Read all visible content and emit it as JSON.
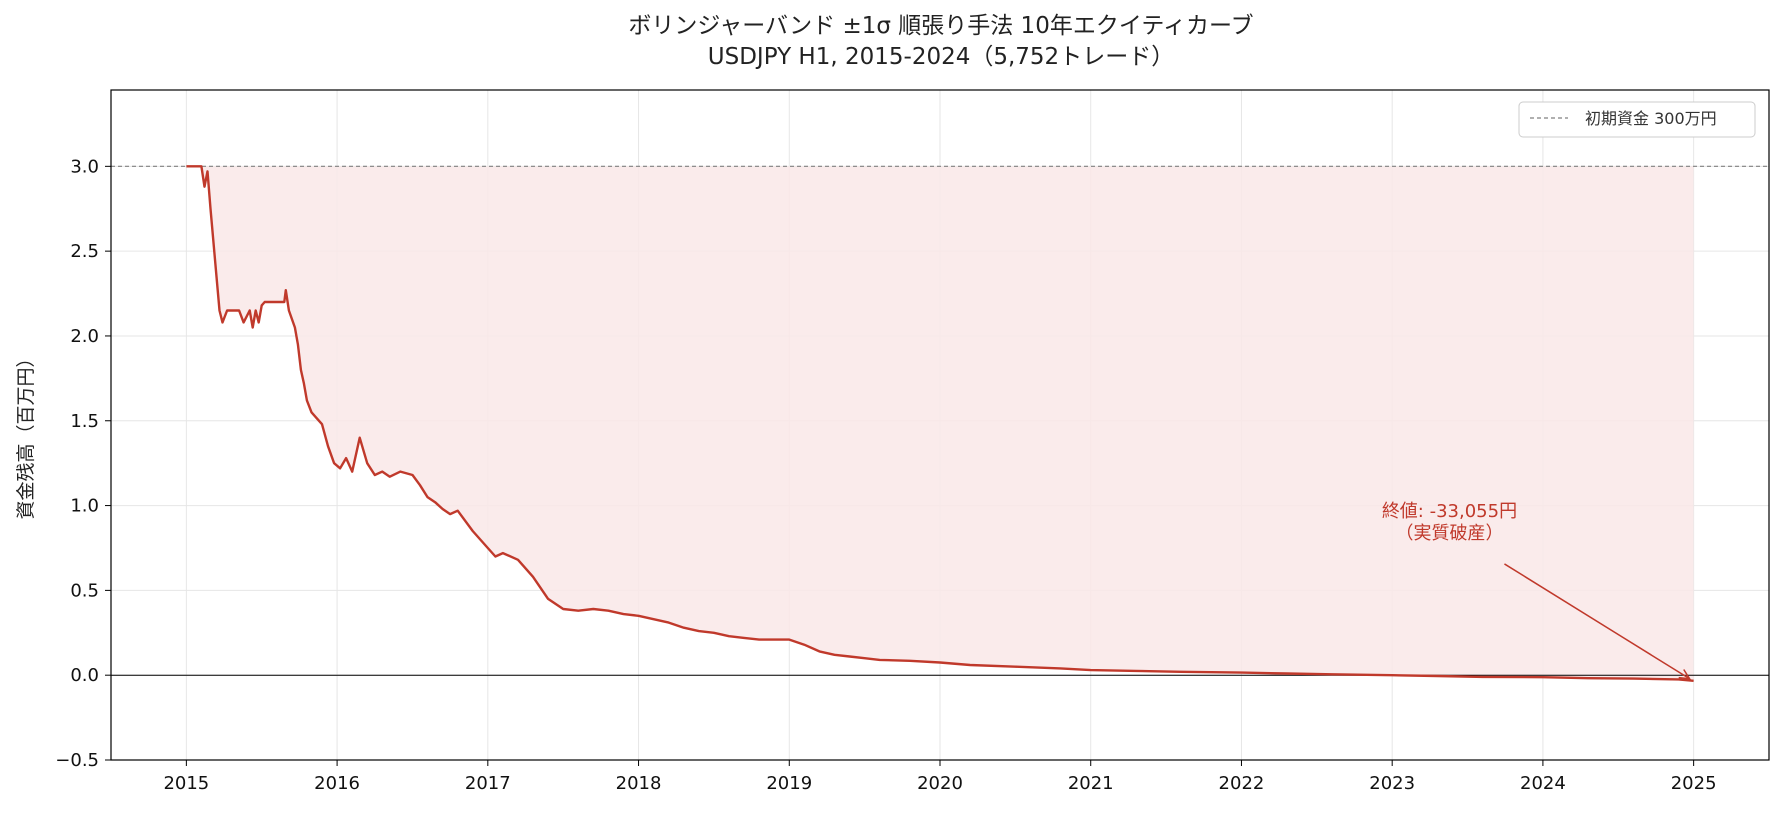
{
  "chart_data": {
    "type": "area",
    "title": "ボリンジャーバンド ±1σ 順張り手法 10年エクイティカーブ",
    "subtitle": "USDJPY H1, 2015-2024（5,752トレード）",
    "xlabel": "",
    "ylabel": "資金残高（百万円）",
    "xlim": [
      2014.5,
      2025.5
    ],
    "ylim": [
      -0.5,
      3.45
    ],
    "x_ticks": [
      2015,
      2016,
      2017,
      2018,
      2019,
      2020,
      2021,
      2022,
      2023,
      2024,
      2025
    ],
    "x_tick_labels": [
      "2015",
      "2016",
      "2017",
      "2018",
      "2019",
      "2020",
      "2021",
      "2022",
      "2023",
      "2024",
      "2025"
    ],
    "y_ticks": [
      -0.5,
      0.0,
      0.5,
      1.0,
      1.5,
      2.0,
      2.5,
      3.0
    ],
    "y_tick_labels": [
      "−0.5",
      "0.0",
      "0.5",
      "1.0",
      "1.5",
      "2.0",
      "2.5",
      "3.0"
    ],
    "grid": true,
    "legend": {
      "placement": "top-right",
      "entries": [
        "初期資金 300万円"
      ]
    },
    "initial_capital_line": 3.0,
    "zero_line": 0.0,
    "series": [
      {
        "x": [
          2015.0,
          2015.08,
          2015.1,
          2015.12,
          2015.14,
          2015.16,
          2015.18,
          2015.2,
          2015.22,
          2015.24,
          2015.27,
          2015.3,
          2015.32,
          2015.35,
          2015.38,
          2015.42,
          2015.44,
          2015.46,
          2015.48,
          2015.5,
          2015.52,
          2015.56,
          2015.6,
          2015.65,
          2015.66,
          2015.68,
          2015.7,
          2015.72,
          2015.74,
          2015.76,
          2015.78,
          2015.8,
          2015.83,
          2015.86,
          2015.9,
          2015.94,
          2015.98,
          2016.02,
          2016.06,
          2016.1,
          2016.15,
          2016.2,
          2016.25,
          2016.3,
          2016.35,
          2016.42,
          2016.5,
          2016.55,
          2016.6,
          2016.65,
          2016.7,
          2016.75,
          2016.8,
          2016.9,
          2017.0,
          2017.05,
          2017.1,
          2017.2,
          2017.3,
          2017.4,
          2017.5,
          2017.6,
          2017.7,
          2017.8,
          2017.9,
          2018.0,
          2018.1,
          2018.2,
          2018.3,
          2018.4,
          2018.5,
          2018.6,
          2018.7,
          2018.8,
          2018.9,
          2019.0,
          2019.1,
          2019.2,
          2019.3,
          2019.4,
          2019.5,
          2019.6,
          2019.8,
          2020.0,
          2020.2,
          2020.5,
          2020.8,
          2021.0,
          2021.3,
          2021.6,
          2022.0,
          2022.3,
          2022.6,
          2023.0,
          2023.3,
          2023.6,
          2024.0,
          2024.3,
          2024.6,
          2024.9,
          2025.0
        ],
        "values": [
          3.0,
          3.0,
          3.0,
          2.88,
          2.97,
          2.75,
          2.55,
          2.35,
          2.15,
          2.08,
          2.15,
          2.15,
          2.15,
          2.15,
          2.08,
          2.15,
          2.05,
          2.15,
          2.08,
          2.18,
          2.2,
          2.2,
          2.2,
          2.2,
          2.27,
          2.15,
          2.1,
          2.05,
          1.95,
          1.8,
          1.72,
          1.62,
          1.55,
          1.52,
          1.48,
          1.35,
          1.25,
          1.22,
          1.28,
          1.2,
          1.4,
          1.25,
          1.18,
          1.2,
          1.17,
          1.2,
          1.18,
          1.12,
          1.05,
          1.02,
          0.98,
          0.95,
          0.97,
          0.85,
          0.75,
          0.7,
          0.72,
          0.68,
          0.58,
          0.45,
          0.39,
          0.38,
          0.39,
          0.38,
          0.36,
          0.35,
          0.33,
          0.31,
          0.28,
          0.26,
          0.25,
          0.23,
          0.22,
          0.21,
          0.21,
          0.21,
          0.18,
          0.14,
          0.12,
          0.11,
          0.1,
          0.09,
          0.085,
          0.075,
          0.06,
          0.05,
          0.04,
          0.03,
          0.025,
          0.02,
          0.015,
          0.01,
          0.005,
          0.0,
          -0.005,
          -0.01,
          -0.012,
          -0.018,
          -0.02,
          -0.025,
          -0.033
        ]
      }
    ],
    "annotation": {
      "lines": [
        "終値: -33,055円",
        "（実質破産）"
      ],
      "target_x": 2025.0,
      "target_y": -0.033,
      "text_x": 2023.38,
      "text_y": 0.65
    },
    "colors": {
      "line": "#c0392b",
      "fill": "#f9e8e8",
      "initial_line": "#808080",
      "zero_line": "#000000",
      "grid": "#e6e6e6",
      "annotation": "#c0392b"
    }
  }
}
